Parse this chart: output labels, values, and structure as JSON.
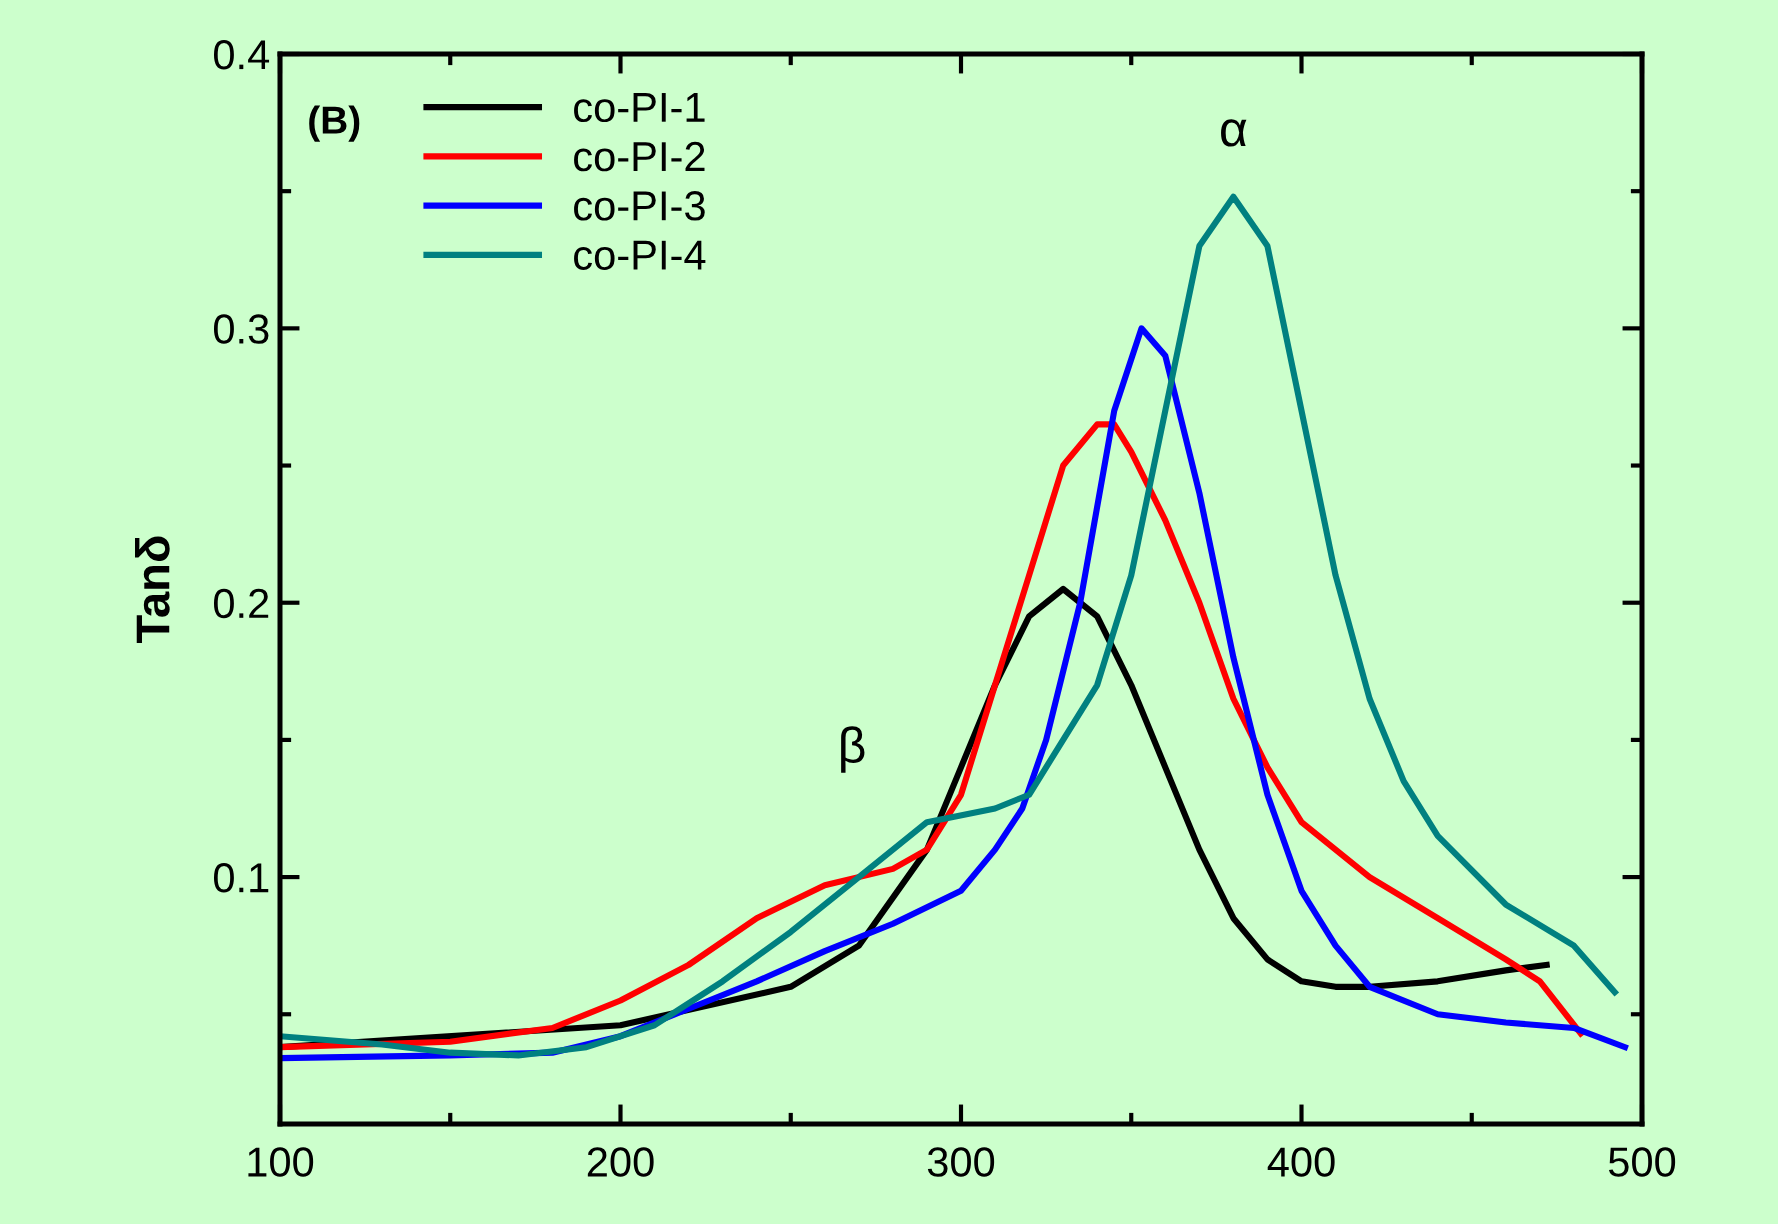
{
  "chart_data": {
    "type": "line",
    "ylabel": "Tanδ",
    "xlim": [
      100,
      500
    ],
    "ylim": [
      0.01,
      0.4
    ],
    "xticks": [
      100,
      200,
      300,
      400,
      500
    ],
    "yticks": [
      0.1,
      0.2,
      0.3,
      0.4
    ],
    "grid": false,
    "legend": "top left",
    "line_style": "solid",
    "marker": "none",
    "annotations": [
      "α",
      "β",
      "(B)"
    ],
    "series": [
      {
        "name": "co-PI-1",
        "color": "#000000",
        "x": [
          100,
          200,
          250,
          270,
          290,
          300,
          310,
          320,
          330,
          340,
          350,
          360,
          370,
          380,
          390,
          400,
          410,
          420,
          440,
          460,
          472
        ],
        "values": [
          0.038,
          0.046,
          0.06,
          0.075,
          0.11,
          0.14,
          0.17,
          0.195,
          0.205,
          0.195,
          0.17,
          0.14,
          0.11,
          0.085,
          0.07,
          0.062,
          0.06,
          0.06,
          0.062,
          0.066,
          0.068
        ]
      },
      {
        "name": "co-PI-2",
        "color": "#ff0000",
        "x": [
          100,
          150,
          180,
          200,
          220,
          240,
          260,
          280,
          290,
          300,
          310,
          320,
          330,
          340,
          345,
          350,
          360,
          370,
          380,
          390,
          400,
          420,
          440,
          460,
          470,
          482
        ],
        "values": [
          0.038,
          0.04,
          0.045,
          0.055,
          0.068,
          0.085,
          0.097,
          0.103,
          0.11,
          0.13,
          0.17,
          0.21,
          0.25,
          0.265,
          0.265,
          0.255,
          0.23,
          0.2,
          0.165,
          0.14,
          0.12,
          0.1,
          0.085,
          0.07,
          0.062,
          0.043
        ]
      },
      {
        "name": "co-PI-3",
        "color": "#0000ff",
        "x": [
          100,
          150,
          180,
          200,
          220,
          240,
          260,
          280,
          300,
          310,
          318,
          325,
          335,
          345,
          353,
          360,
          370,
          380,
          390,
          400,
          410,
          420,
          440,
          460,
          480,
          495
        ],
        "values": [
          0.034,
          0.035,
          0.036,
          0.042,
          0.052,
          0.062,
          0.073,
          0.083,
          0.095,
          0.11,
          0.125,
          0.15,
          0.2,
          0.27,
          0.3,
          0.29,
          0.24,
          0.18,
          0.13,
          0.095,
          0.075,
          0.06,
          0.05,
          0.047,
          0.045,
          0.038
        ]
      },
      {
        "name": "co-PI-4",
        "color": "#008080",
        "x": [
          100,
          130,
          150,
          170,
          190,
          210,
          230,
          250,
          270,
          290,
          310,
          320,
          330,
          340,
          350,
          360,
          370,
          380,
          390,
          400,
          410,
          420,
          430,
          440,
          460,
          480,
          492
        ],
        "values": [
          0.042,
          0.039,
          0.036,
          0.035,
          0.038,
          0.046,
          0.062,
          0.08,
          0.1,
          0.12,
          0.125,
          0.13,
          0.15,
          0.17,
          0.21,
          0.27,
          0.33,
          0.348,
          0.33,
          0.27,
          0.21,
          0.165,
          0.135,
          0.115,
          0.09,
          0.075,
          0.058
        ]
      }
    ]
  }
}
